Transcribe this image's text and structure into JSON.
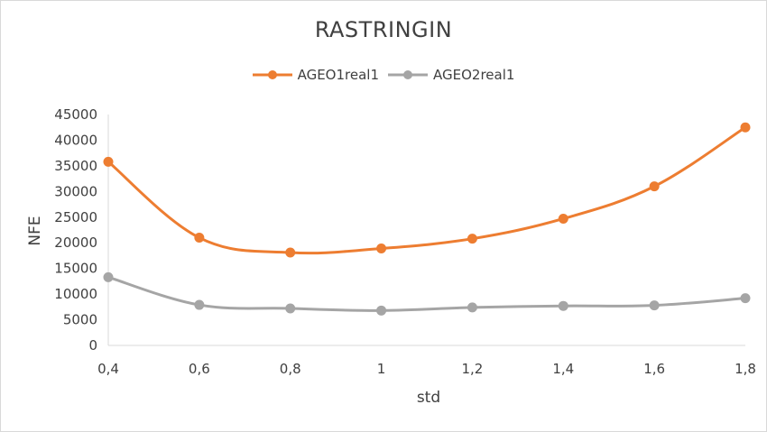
{
  "chart_data": {
    "type": "line",
    "title": "RASTRINGIN",
    "xlabel": "std",
    "ylabel": "NFE",
    "categories": [
      "0,4",
      "0,6",
      "0,8",
      "1",
      "1,2",
      "1,4",
      "1,6",
      "1,8"
    ],
    "x": [
      0.4,
      0.6,
      0.8,
      1.0,
      1.2,
      1.4,
      1.6,
      1.8
    ],
    "xlim": [
      0.4,
      1.8
    ],
    "ylim": [
      0,
      45000
    ],
    "yticks": [
      0,
      5000,
      10000,
      15000,
      20000,
      25000,
      30000,
      35000,
      40000,
      45000
    ],
    "grid": false,
    "legend_position": "top",
    "series": [
      {
        "name": "AGEO1real1",
        "color": "#ed7d31",
        "values": [
          35800,
          21000,
          18100,
          18900,
          20800,
          24700,
          31000,
          42500
        ]
      },
      {
        "name": "AGEO2real1",
        "color": "#a5a5a5",
        "values": [
          13300,
          7900,
          7200,
          6800,
          7400,
          7700,
          7800,
          9200
        ]
      }
    ]
  }
}
